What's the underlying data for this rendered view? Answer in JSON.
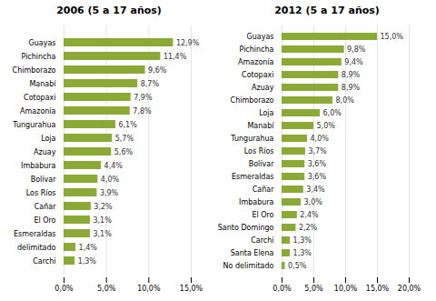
{
  "chart_data": [
    {
      "type": "bar",
      "orientation": "horizontal",
      "title": "2006 (5 a 17 años)",
      "categories": [
        "Guayas",
        "Pichincha",
        "Chimborazo",
        "Manabí",
        "Cotopaxi",
        "Amazonía",
        "Tungurahua",
        "Loja",
        "Azuay",
        "Imbabura",
        "Bolívar",
        "Los Ríos",
        "Cañar",
        "El Oro",
        "Esmeraldas",
        "delimitado",
        "Carchi"
      ],
      "values": [
        12.9,
        11.4,
        9.6,
        8.7,
        7.9,
        7.8,
        6.1,
        5.7,
        5.6,
        4.4,
        4.0,
        3.9,
        3.2,
        3.1,
        3.1,
        1.4,
        1.3
      ],
      "value_labels": [
        "12,9%",
        "11,4%",
        "9,6%",
        "8,7%",
        "7,9%",
        "7,8%",
        "6,1%",
        "5,7%",
        "5,6%",
        "4,4%",
        "4,0%",
        "3,9%",
        "3,2%",
        "3,1%",
        "3,1%",
        "1,4%",
        "1,3%"
      ],
      "color": "#8aaa35",
      "xlim": [
        0,
        15
      ],
      "xticks": [
        {
          "value": 0,
          "label": "0,0%"
        },
        {
          "value": 5,
          "label": "5,0%"
        },
        {
          "value": 10,
          "label": "10,0%"
        },
        {
          "value": 15,
          "label": "15,0%"
        }
      ],
      "grid": true,
      "data_labels": true
    },
    {
      "type": "bar",
      "orientation": "horizontal",
      "title": "2012 (5 a 17 años)",
      "categories": [
        "Guayas",
        "Pichincha",
        "Amazonía",
        "Cotopaxi",
        "Azuay",
        "Chimborazo",
        "Loja",
        "Manabí",
        "Tungurahua",
        "Los Ríos",
        "Bolívar",
        "Esmeraldas",
        "Cañar",
        "Imbabura",
        "El Oro",
        "Santo Domingo",
        "Carchi",
        "Santa Elena",
        "No delimitado"
      ],
      "values": [
        15.0,
        9.8,
        9.4,
        8.9,
        8.9,
        8.0,
        6.0,
        5.0,
        4.0,
        3.7,
        3.6,
        3.6,
        3.4,
        3.0,
        2.4,
        2.2,
        1.3,
        1.3,
        0.5
      ],
      "value_labels": [
        "15,0%",
        "9,8%",
        "9,4%",
        "8,9%",
        "8,9%",
        "8,0%",
        "6,0%",
        "5,0%",
        "4,0%",
        "3,7%",
        "3,6%",
        "3,6%",
        "3,4%",
        "3,0%",
        "2,4%",
        "2,2%",
        "1,3%",
        "1,3%",
        "0,5%"
      ],
      "color": "#8aaa35",
      "xlim": [
        0,
        20
      ],
      "xticks": [
        {
          "value": 0,
          "label": "0,0%"
        },
        {
          "value": 5,
          "label": "5,0%"
        },
        {
          "value": 10,
          "label": "10,0%"
        },
        {
          "value": 15,
          "label": "15,0%"
        },
        {
          "value": 20,
          "label": "20,0%"
        }
      ],
      "grid": true,
      "data_labels": true
    }
  ]
}
